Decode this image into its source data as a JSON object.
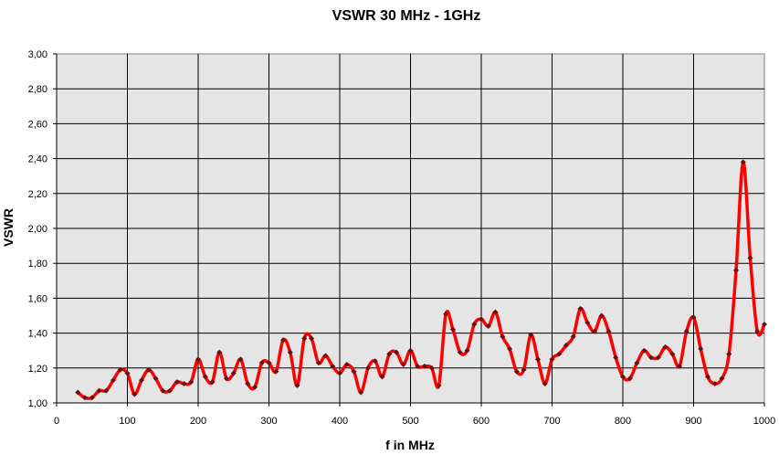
{
  "chart_data": {
    "type": "line",
    "title": "VSWR 30 MHz - 1GHz",
    "xlabel": "f in MHz",
    "ylabel": "VSWR",
    "xlim": [
      0,
      1000
    ],
    "ylim": [
      1.0,
      3.0
    ],
    "x_ticks": [
      "0",
      "100",
      "200",
      "300",
      "400",
      "500",
      "600",
      "700",
      "800",
      "900",
      "1000"
    ],
    "y_ticks": [
      "1,00",
      "1,20",
      "1,40",
      "1,60",
      "1,80",
      "2,00",
      "2,20",
      "2,40",
      "2,60",
      "2,80",
      "3,00"
    ],
    "grid": true,
    "legend": "none",
    "colors": {
      "plot_background": "#e5e5e5",
      "line": "#ff0000",
      "marker": "#6b1010",
      "grid": "#000000"
    },
    "series": [
      {
        "x": [
          30,
          40,
          50,
          60,
          70,
          80,
          90,
          100,
          110,
          120,
          130,
          140,
          150,
          160,
          170,
          180,
          190,
          200,
          210,
          220,
          230,
          240,
          250,
          260,
          270,
          280,
          290,
          300,
          310,
          320,
          330,
          340,
          350,
          360,
          370,
          380,
          390,
          400,
          410,
          420,
          430,
          440,
          450,
          460,
          470,
          480,
          490,
          500,
          510,
          520,
          530,
          540,
          550,
          560,
          570,
          580,
          590,
          600,
          610,
          620,
          630,
          640,
          650,
          660,
          670,
          680,
          690,
          700,
          710,
          720,
          730,
          740,
          750,
          760,
          770,
          780,
          790,
          800,
          810,
          820,
          830,
          840,
          850,
          860,
          870,
          880,
          890,
          900,
          910,
          920,
          930,
          940,
          950,
          960,
          970,
          980,
          990,
          1000
        ],
        "y": [
          1.06,
          1.03,
          1.03,
          1.07,
          1.07,
          1.13,
          1.19,
          1.17,
          1.05,
          1.13,
          1.19,
          1.14,
          1.07,
          1.07,
          1.12,
          1.11,
          1.12,
          1.25,
          1.15,
          1.12,
          1.29,
          1.14,
          1.17,
          1.25,
          1.11,
          1.09,
          1.23,
          1.23,
          1.18,
          1.36,
          1.29,
          1.1,
          1.37,
          1.37,
          1.23,
          1.27,
          1.21,
          1.17,
          1.22,
          1.18,
          1.06,
          1.2,
          1.24,
          1.15,
          1.28,
          1.29,
          1.22,
          1.3,
          1.21,
          1.21,
          1.2,
          1.1,
          1.51,
          1.42,
          1.29,
          1.3,
          1.45,
          1.48,
          1.44,
          1.52,
          1.38,
          1.31,
          1.18,
          1.19,
          1.39,
          1.25,
          1.11,
          1.25,
          1.28,
          1.33,
          1.38,
          1.54,
          1.46,
          1.41,
          1.5,
          1.41,
          1.26,
          1.15,
          1.14,
          1.23,
          1.3,
          1.26,
          1.26,
          1.32,
          1.28,
          1.21,
          1.41,
          1.49,
          1.31,
          1.15,
          1.11,
          1.14,
          1.28,
          1.76,
          2.38,
          1.83,
          1.41,
          1.45
        ]
      }
    ]
  }
}
